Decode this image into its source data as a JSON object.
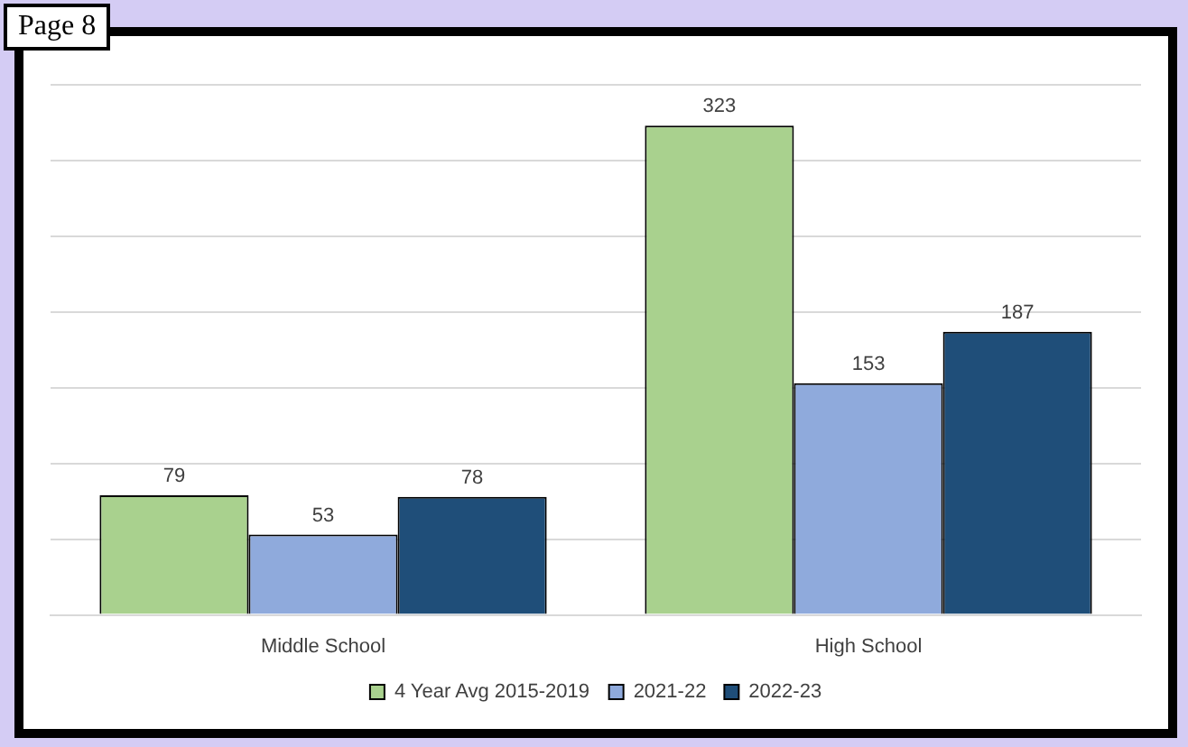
{
  "chart_data": {
    "type": "bar",
    "categories": [
      "Middle School",
      "High School"
    ],
    "series": [
      {
        "name": "4 Year Avg 2015-2019",
        "color": "#a9d18e",
        "values": [
          79,
          323
        ]
      },
      {
        "name": "2021-22",
        "color": "#8faadc",
        "values": [
          53,
          153
        ]
      },
      {
        "name": "2022-23",
        "color": "#1f4e79",
        "values": [
          78,
          187
        ]
      }
    ],
    "tick_labels": "x",
    "grid": "y",
    "legend": "bottom",
    "data_labels": true,
    "annotations": [
      "Page 8"
    ]
  }
}
